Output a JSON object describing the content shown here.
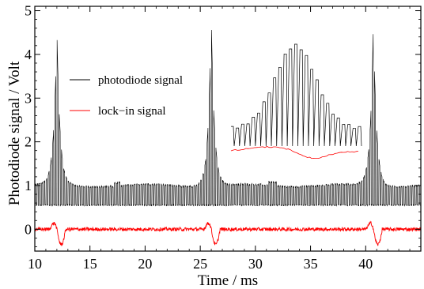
{
  "chart_data": {
    "type": "line",
    "xlabel": "Time / ms",
    "ylabel": "Photodiode signal / Volt",
    "xlim": [
      10,
      45
    ],
    "ylim": [
      -0.5,
      5.1
    ],
    "x_ticks": [
      10,
      15,
      20,
      25,
      30,
      35,
      40
    ],
    "y_ticks": [
      0,
      1,
      2,
      3,
      4,
      5
    ],
    "grid": false,
    "legend_position": "left-middle",
    "series": [
      {
        "name": "photodiode signal",
        "color": "#000000",
        "description_points": [
          [
            10,
            1.0
          ],
          [
            11,
            1.05
          ],
          [
            11.5,
            1.4
          ],
          [
            12.0,
            4.55
          ],
          [
            12.5,
            1.6
          ],
          [
            13,
            1.1
          ],
          [
            15,
            1.0
          ],
          [
            17.5,
            1.1
          ],
          [
            20,
            1.05
          ],
          [
            24,
            1.1
          ],
          [
            25.5,
            1.8
          ],
          [
            26.0,
            4.85
          ],
          [
            26.5,
            1.6
          ],
          [
            27.5,
            1.1
          ],
          [
            31.5,
            1.15
          ],
          [
            33,
            1.0
          ],
          [
            39,
            1.1
          ],
          [
            40.2,
            1.9
          ],
          [
            40.7,
            4.75
          ],
          [
            41.2,
            1.7
          ],
          [
            42,
            1.1
          ],
          [
            45,
            1.05
          ]
        ],
        "peaks": [
          [
            12.0,
            4.55
          ],
          [
            26.0,
            4.85
          ],
          [
            40.7,
            4.75
          ]
        ]
      },
      {
        "name": "lock-in signal",
        "color": "#ff0000",
        "baseline": 0.0,
        "features": [
          [
            12.0,
            0.25,
            -0.1
          ],
          [
            26.0,
            0.3,
            -0.15
          ],
          [
            40.7,
            0.3,
            -0.05
          ]
        ]
      }
    ],
    "legend": [
      {
        "label": "photodiode signal",
        "color": "#000000"
      },
      {
        "label": "lock−in signal",
        "color": "#ff0000"
      }
    ]
  }
}
